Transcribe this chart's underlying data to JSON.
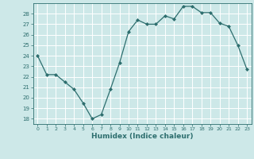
{
  "x": [
    0,
    1,
    2,
    3,
    4,
    5,
    6,
    7,
    8,
    9,
    10,
    11,
    12,
    13,
    14,
    15,
    16,
    17,
    18,
    19,
    20,
    21,
    22,
    23
  ],
  "y": [
    24.0,
    22.2,
    22.2,
    21.5,
    20.8,
    19.5,
    18.0,
    18.4,
    20.8,
    23.3,
    26.3,
    27.4,
    27.0,
    27.0,
    27.8,
    27.5,
    28.7,
    28.7,
    28.1,
    28.1,
    27.1,
    26.8,
    25.0,
    22.7
  ],
  "xlabel": "Humidex (Indice chaleur)",
  "ylabel": "",
  "title": "",
  "xlim": [
    -0.5,
    23.5
  ],
  "ylim": [
    17.5,
    29.0
  ],
  "yticks": [
    18,
    19,
    20,
    21,
    22,
    23,
    24,
    25,
    26,
    27,
    28
  ],
  "xticks": [
    0,
    1,
    2,
    3,
    4,
    5,
    6,
    7,
    8,
    9,
    10,
    11,
    12,
    13,
    14,
    15,
    16,
    17,
    18,
    19,
    20,
    21,
    22,
    23
  ],
  "line_color": "#2d6e6e",
  "marker": "D",
  "markersize": 2.0,
  "bg_color": "#cde8e8",
  "grid_color": "#ffffff",
  "tick_color": "#2d6e6e",
  "label_color": "#2d6e6e"
}
